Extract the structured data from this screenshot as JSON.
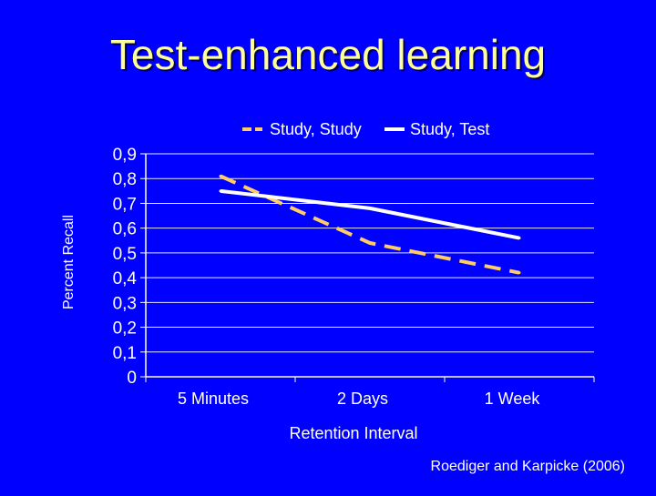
{
  "slide": {
    "title": "Test-enhanced learning",
    "source": "Roediger and Karpicke (2006)"
  },
  "colors": {
    "background": "#0000ff",
    "title": "#ffff99",
    "text": "#ffffff",
    "study_study": "#ffcc66",
    "study_test": "#ffffff",
    "grid": "#ffffff"
  },
  "chart_data": {
    "type": "line",
    "title": "",
    "xlabel": "Retention Interval",
    "ylabel": "Percent Recall",
    "categories": [
      "5 Minutes",
      "2 Days",
      "1 Week"
    ],
    "ylim": [
      0,
      0.9
    ],
    "yticks": [
      "0",
      "0,1",
      "0,2",
      "0,3",
      "0,4",
      "0,5",
      "0,6",
      "0,7",
      "0,8",
      "0,9"
    ],
    "grid": true,
    "legend": "top",
    "series": [
      {
        "name": "Study, Study",
        "values": [
          0.81,
          0.54,
          0.42
        ],
        "style": "dashed",
        "color": "#ffcc66"
      },
      {
        "name": "Study, Test",
        "values": [
          0.75,
          0.68,
          0.56
        ],
        "style": "solid",
        "color": "#ffffff"
      }
    ]
  }
}
